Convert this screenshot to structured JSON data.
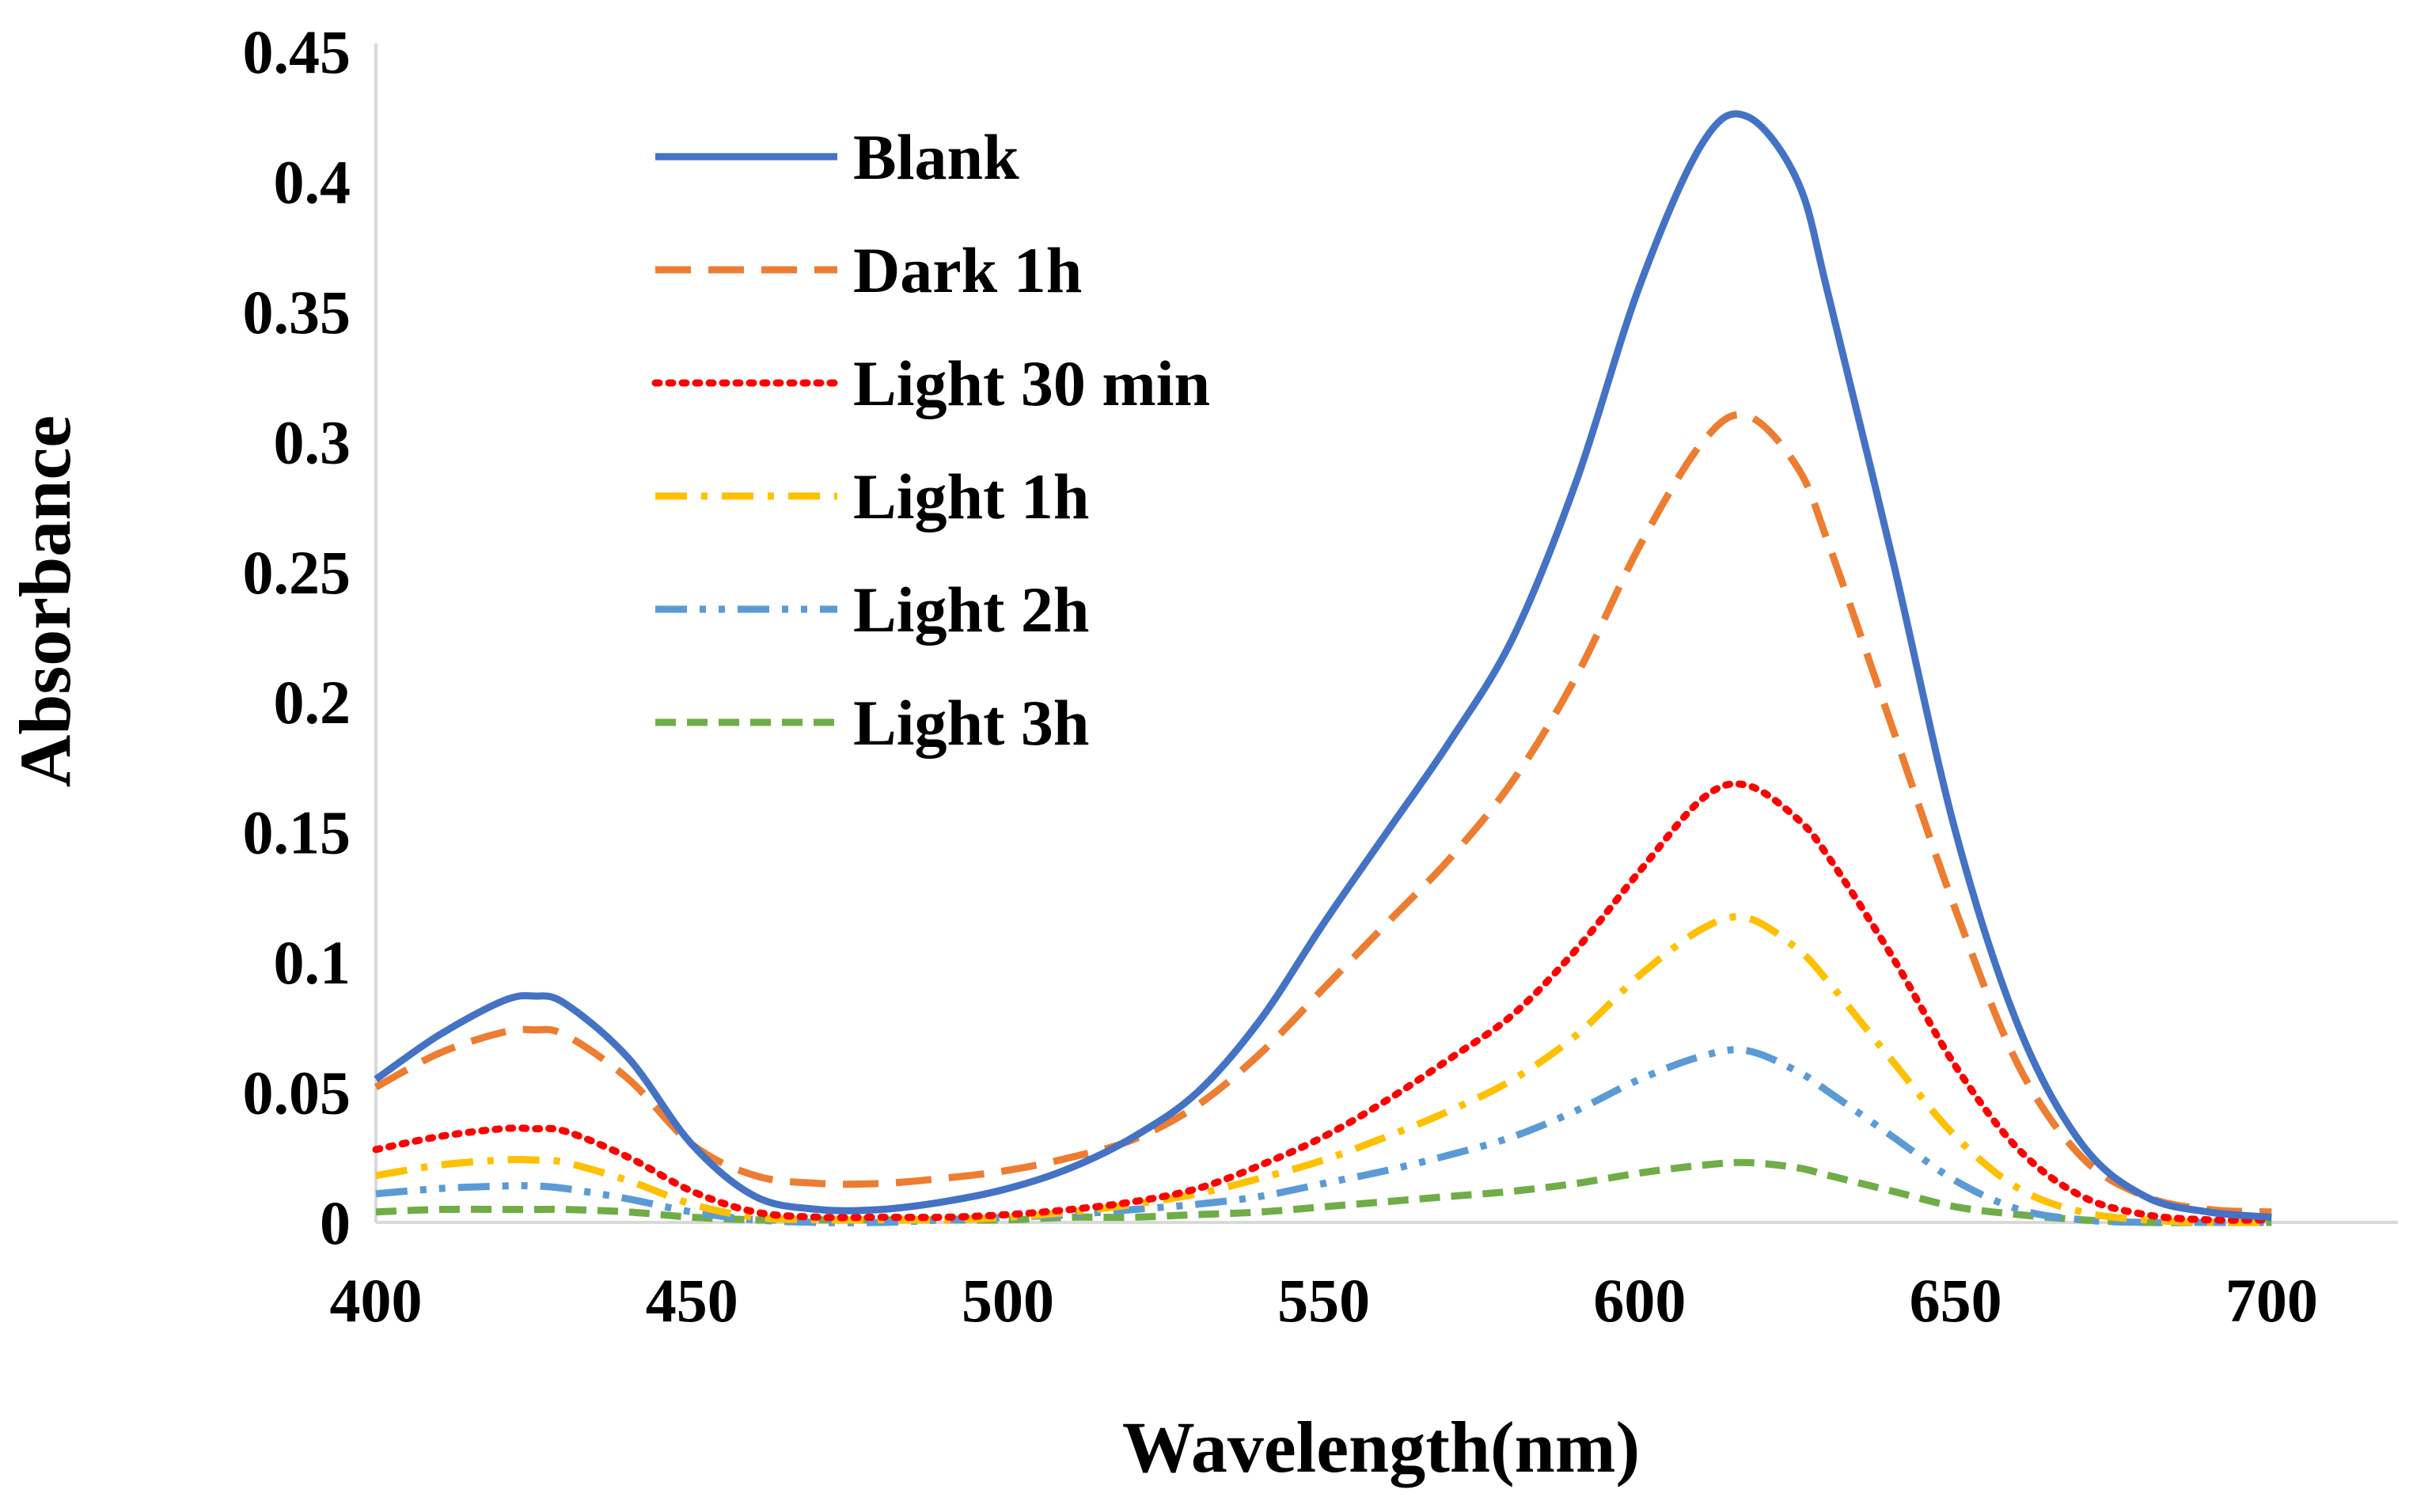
{
  "chart_data": {
    "type": "line",
    "title": "",
    "xlabel": "Wavelength(nm)",
    "ylabel": "Absorbance",
    "xlim": [
      400,
      720
    ],
    "ylim": [
      0,
      0.45
    ],
    "xticks": [
      "400",
      "450",
      "500",
      "550",
      "600",
      "650",
      "700"
    ],
    "yticks": [
      "0",
      "0.05",
      "0.1",
      "0.15",
      "0.2",
      "0.25",
      "0.3",
      "0.35",
      "0.4",
      "0.45"
    ],
    "grid": false,
    "legend_position": "top-left",
    "x": [
      400,
      410,
      420,
      425,
      430,
      440,
      450,
      460,
      470,
      480,
      490,
      500,
      510,
      520,
      530,
      540,
      550,
      560,
      570,
      580,
      590,
      600,
      610,
      617,
      625,
      630,
      640,
      650,
      660,
      670,
      680,
      690,
      700
    ],
    "series": [
      {
        "name": "Blank",
        "color": "#4472C4",
        "dash": "solid",
        "values": [
          0.055,
          0.072,
          0.085,
          0.087,
          0.084,
          0.063,
          0.03,
          0.01,
          0.005,
          0.005,
          0.008,
          0.013,
          0.021,
          0.033,
          0.05,
          0.078,
          0.115,
          0.15,
          0.185,
          0.225,
          0.285,
          0.36,
          0.415,
          0.425,
          0.4,
          0.355,
          0.255,
          0.15,
          0.075,
          0.03,
          0.01,
          0.004,
          0.002
        ]
      },
      {
        "name": "Dark 1h",
        "color": "#ED7D31",
        "dash": "dashed",
        "values": [
          0.052,
          0.065,
          0.073,
          0.074,
          0.072,
          0.055,
          0.03,
          0.018,
          0.015,
          0.015,
          0.017,
          0.02,
          0.025,
          0.032,
          0.045,
          0.065,
          0.09,
          0.115,
          0.14,
          0.17,
          0.21,
          0.26,
          0.3,
          0.31,
          0.29,
          0.26,
          0.19,
          0.12,
          0.06,
          0.025,
          0.01,
          0.005,
          0.004
        ]
      },
      {
        "name": "Light 30 min",
        "color": "#FF0000",
        "dash": "dotted",
        "values": [
          0.028,
          0.033,
          0.036,
          0.036,
          0.035,
          0.025,
          0.012,
          0.004,
          0.002,
          0.002,
          0.002,
          0.003,
          0.005,
          0.008,
          0.013,
          0.022,
          0.033,
          0.047,
          0.063,
          0.08,
          0.105,
          0.135,
          0.163,
          0.168,
          0.155,
          0.14,
          0.102,
          0.06,
          0.028,
          0.01,
          0.003,
          0.001,
          0.001
        ]
      },
      {
        "name": "Light 1h",
        "color": "#FFC000",
        "dash": "dashdot",
        "values": [
          0.018,
          0.022,
          0.024,
          0.024,
          0.023,
          0.016,
          0.007,
          0.002,
          0.001,
          0.001,
          0.001,
          0.002,
          0.004,
          0.007,
          0.011,
          0.017,
          0.024,
          0.033,
          0.043,
          0.055,
          0.072,
          0.095,
          0.113,
          0.117,
          0.105,
          0.092,
          0.062,
          0.033,
          0.013,
          0.004,
          0.001,
          0.0,
          0.0
        ]
      },
      {
        "name": "Light 2h",
        "color": "#5B9BD5",
        "dash": "dashdotdot",
        "values": [
          0.011,
          0.013,
          0.014,
          0.014,
          0.013,
          0.009,
          0.004,
          0.001,
          0.0,
          0.0,
          0.001,
          0.002,
          0.003,
          0.005,
          0.007,
          0.01,
          0.015,
          0.02,
          0.026,
          0.033,
          0.043,
          0.055,
          0.064,
          0.066,
          0.058,
          0.05,
          0.033,
          0.016,
          0.005,
          0.001,
          0.0,
          0.0,
          0.0
        ]
      },
      {
        "name": "Light 3h",
        "color": "#70AD47",
        "dash": "dashed-short",
        "values": [
          0.004,
          0.005,
          0.005,
          0.005,
          0.005,
          0.004,
          0.002,
          0.001,
          0.001,
          0.001,
          0.001,
          0.001,
          0.002,
          0.002,
          0.003,
          0.004,
          0.006,
          0.008,
          0.01,
          0.012,
          0.015,
          0.019,
          0.022,
          0.023,
          0.021,
          0.018,
          0.012,
          0.006,
          0.003,
          0.001,
          0.0,
          0.0,
          0.0
        ]
      }
    ]
  }
}
